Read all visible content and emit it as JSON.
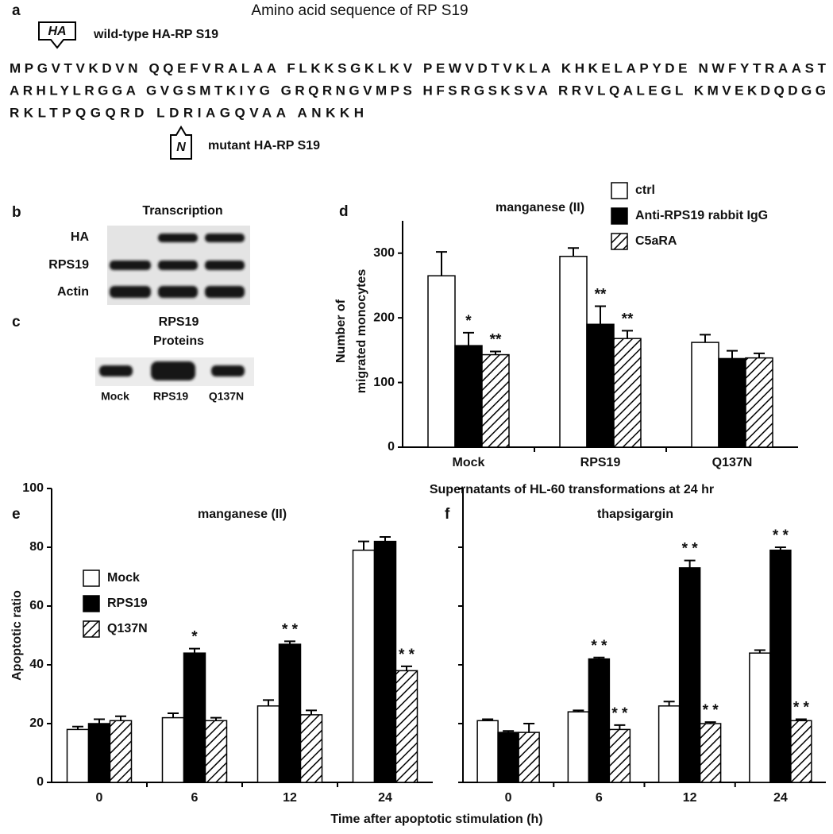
{
  "panel_a": {
    "label": "a",
    "title": "Amino acid sequence of RP S19",
    "wild_type_tag": "HA",
    "wild_type_label": "wild-type HA-RP S19",
    "sequence": [
      "MPGVTVKDVN QQEFVRALAA FLKKSGKLKV PEWVDTVKLA KHKELAPYDE NWFYTRAAST",
      "ARHLYLRGGA GVGSMTKIYG GRQRNGVMPS HFSRGSKSVA RRVLQALEGL KMVEKDQDGG",
      "RKLTPQGQRD LDRIAGQVAA ANKKH"
    ],
    "mutant_tag": "N",
    "mutant_label": "mutant HA-RP S19"
  },
  "panel_b": {
    "label": "b",
    "title": "Transcription",
    "rows": [
      "HA",
      "RPS19",
      "Actin"
    ]
  },
  "panel_c": {
    "label": "c",
    "title": [
      "RPS19",
      "Proteins"
    ],
    "lanes": [
      "Mock",
      "RPS19",
      "Q137N"
    ]
  },
  "chart_data": [
    {
      "type": "bar",
      "label": "d",
      "title": "manganese (II)",
      "y_label": [
        "Number of",
        "migrated monocytes"
      ],
      "x_label": "Supernatants of HL-60 transformations at 24 hr",
      "categories": [
        "Mock",
        "RPS19",
        "Q137N"
      ],
      "series": [
        {
          "name": "ctrl",
          "color": "#ffffff",
          "values": [
            265,
            295,
            162
          ],
          "errors": [
            37,
            13,
            12
          ]
        },
        {
          "name": "Anti-RPS19 rabbit IgG",
          "color": "#000000",
          "values": [
            157,
            190,
            137
          ],
          "errors": [
            20,
            28,
            12
          ],
          "significance": [
            "*",
            "**",
            null
          ]
        },
        {
          "name": "C5aRA",
          "color": "#ffffff",
          "pattern": "hatch",
          "values": [
            143,
            168,
            138
          ],
          "errors": [
            5,
            12,
            7
          ],
          "significance": [
            "**",
            "**",
            null
          ]
        }
      ],
      "ylim": [
        0,
        350
      ],
      "yticks": [
        0,
        100,
        200,
        300
      ],
      "ytick_labels": true,
      "legend": "upper right"
    },
    {
      "type": "bar",
      "label": "e",
      "title": "manganese (II)",
      "y_label": [
        "Apoptotic ratio"
      ],
      "x_label": "Time after apoptotic stimulation (h)",
      "categories": [
        "0",
        "6",
        "12",
        "24"
      ],
      "series": [
        {
          "name": "Mock",
          "color": "#ffffff",
          "values": [
            18,
            22,
            26,
            79
          ],
          "errors": [
            1,
            1.5,
            2,
            3
          ]
        },
        {
          "name": "RPS19",
          "color": "#000000",
          "values": [
            20,
            44,
            47,
            82
          ],
          "errors": [
            1.5,
            1.5,
            1,
            1.5
          ],
          "significance": [
            null,
            "*",
            "* *",
            null
          ]
        },
        {
          "name": "Q137N",
          "color": "#ffffff",
          "pattern": "hatch",
          "values": [
            21,
            21,
            23,
            38
          ],
          "errors": [
            1.5,
            1,
            1.5,
            1.5
          ],
          "significance": [
            null,
            null,
            null,
            "* *"
          ]
        }
      ],
      "ylim": [
        0,
        100
      ],
      "yticks": [
        0,
        20,
        40,
        60,
        80,
        100
      ],
      "ytick_labels": true,
      "legend": "upper left"
    },
    {
      "type": "bar",
      "label": "f",
      "title": "thapsigargin",
      "categories": [
        "0",
        "6",
        "12",
        "24"
      ],
      "series": [
        {
          "color": "#ffffff",
          "values": [
            21,
            24,
            26,
            44
          ],
          "errors": [
            0.5,
            0.5,
            1.5,
            1
          ]
        },
        {
          "color": "#000000",
          "values": [
            17,
            42,
            73,
            79
          ],
          "errors": [
            0.5,
            0.5,
            2.5,
            1
          ],
          "significance": [
            null,
            "* *",
            "* *",
            "* *"
          ]
        },
        {
          "color": "#ffffff",
          "pattern": "hatch",
          "values": [
            17,
            18,
            20,
            21
          ],
          "errors": [
            3,
            1.5,
            0.5,
            0.5
          ],
          "significance": [
            null,
            "* *",
            "* *",
            "* *"
          ]
        }
      ],
      "ylim": [
        0,
        100
      ],
      "yticks": [
        0,
        20,
        40,
        60,
        80,
        100
      ],
      "ytick_labels": false
    }
  ]
}
